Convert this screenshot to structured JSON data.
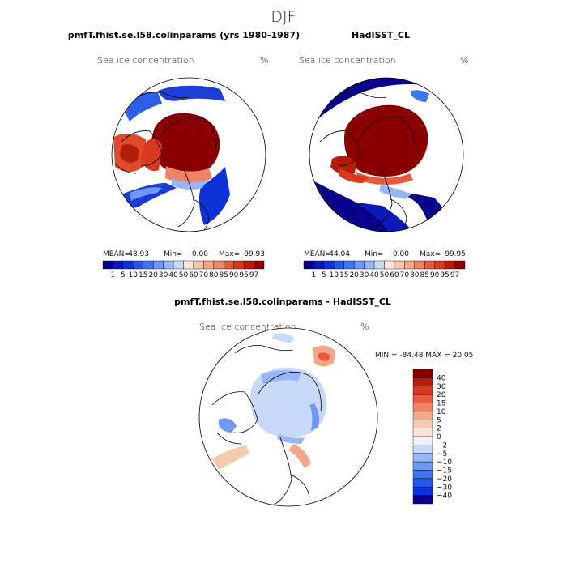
{
  "season_title": "DJF",
  "panels": [
    {
      "title": "pmfT.fhist.se.l58.colinparams (yrs 1980-1987)",
      "variable": "Sea ice concentration",
      "units": "%",
      "stats": {
        "mean_label": "MEAN=",
        "mean": "48.93",
        "min_label": "Min=",
        "min": "0.00",
        "max_label": "Max=",
        "max": "99.93"
      }
    },
    {
      "title": "HadISST_CL",
      "variable": "Sea ice concentration",
      "units": "%",
      "stats": {
        "mean_label": "MEAN=",
        "mean": "44.04",
        "min_label": "Min=",
        "min": "0.00",
        "max_label": "Max=",
        "max": "99.95"
      }
    },
    {
      "title": "pmfT.fhist.se.l58.colinparams - HadISST_CL",
      "variable": "Sea ice concentration",
      "units": "%",
      "minmax_text": "MIN = -84.48 MAX =  20.05"
    }
  ],
  "chart_data": [
    {
      "type": "heatmap",
      "projection": "north-polar-stereographic",
      "title": "pmfT.fhist.se.l58.colinparams (yrs 1980-1987)",
      "variable": "Sea ice concentration",
      "units": "%",
      "mean": 48.93,
      "min": 0.0,
      "max": 99.93,
      "colorbar": {
        "tick_labels": [
          "1",
          "5",
          "10",
          "15",
          "20",
          "30",
          "40",
          "50",
          "60",
          "70",
          "80",
          "85",
          "90",
          "95",
          "97"
        ],
        "colors": [
          "#08008a",
          "#0a1ab8",
          "#0d33d8",
          "#2257e8",
          "#3e78f0",
          "#6e98f4",
          "#98b6f6",
          "#c6daf8",
          "#fbe4d6",
          "#f7c9ad",
          "#f4a889",
          "#ee8466",
          "#e65a3e",
          "#d8391e",
          "#b51c0a",
          "#8a0000"
        ]
      },
      "description_regions": {
        "central_arctic": "90-100",
        "marginal_seas": "50-97"
      }
    },
    {
      "type": "heatmap",
      "projection": "north-polar-stereographic",
      "title": "HadISST_CL",
      "variable": "Sea ice concentration",
      "units": "%",
      "mean": 44.04,
      "min": 0.0,
      "max": 99.95,
      "colorbar": {
        "tick_labels": [
          "1",
          "5",
          "10",
          "15",
          "20",
          "30",
          "40",
          "50",
          "60",
          "70",
          "80",
          "85",
          "90",
          "95",
          "97"
        ],
        "colors": [
          "#08008a",
          "#0a1ab8",
          "#0d33d8",
          "#2257e8",
          "#3e78f0",
          "#6e98f4",
          "#98b6f6",
          "#c6daf8",
          "#fbe4d6",
          "#f7c9ad",
          "#f4a889",
          "#ee8466",
          "#e65a3e",
          "#d8391e",
          "#b51c0a",
          "#8a0000"
        ]
      }
    },
    {
      "type": "heatmap",
      "projection": "north-polar-stereographic",
      "title": "pmfT.fhist.se.l58.colinparams - HadISST_CL",
      "variable": "Sea ice concentration",
      "units": "%",
      "min": -84.48,
      "max": 20.05,
      "colorbar": {
        "tick_labels": [
          "40",
          "30",
          "20",
          "15",
          "10",
          "5",
          "2",
          "0",
          "−2",
          "−5",
          "−10",
          "−15",
          "−20",
          "−30",
          "−40"
        ],
        "colors": [
          "#8a0000",
          "#b51c0a",
          "#d8391e",
          "#e65a3e",
          "#ee8466",
          "#f4a889",
          "#f7c9ad",
          "#fbe4d6",
          "#eef2f8",
          "#c6daf8",
          "#98b6f6",
          "#6e98f4",
          "#3e78f0",
          "#2257e8",
          "#0d33d8",
          "#08008a"
        ]
      }
    }
  ]
}
